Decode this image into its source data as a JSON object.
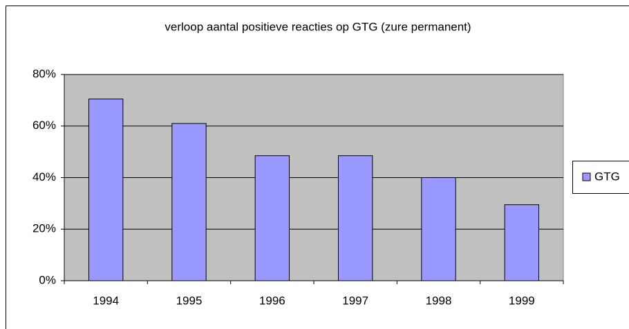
{
  "chart_data": {
    "type": "bar",
    "title": "verloop aantal positieve reacties op GTG (zure permanent)",
    "categories": [
      "1994",
      "1995",
      "1996",
      "1997",
      "1998",
      "1999"
    ],
    "series": [
      {
        "name": "GTG",
        "color": "#9999ff",
        "values": [
          70.5,
          61,
          48.5,
          48.5,
          40,
          29.5
        ]
      }
    ],
    "ylim": [
      0,
      80
    ],
    "yticks": [
      {
        "value": 0,
        "label": "0%"
      },
      {
        "value": 20,
        "label": "20%"
      },
      {
        "value": 40,
        "label": "40%"
      },
      {
        "value": 60,
        "label": "60%"
      },
      {
        "value": 80,
        "label": "80%"
      }
    ],
    "grid": true,
    "legend": "right"
  }
}
